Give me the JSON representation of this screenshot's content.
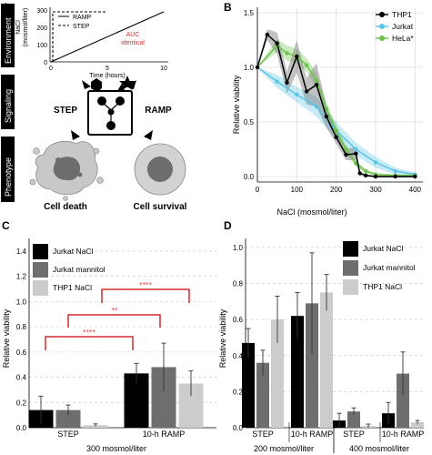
{
  "panelA": {
    "letter": "A",
    "side_labels": [
      "Environment",
      "Signaling",
      "Phenotype"
    ],
    "env_plot": {
      "ylabel": "NaCl\n(mosmol/liter)",
      "xlabel": "Time (hours)",
      "yticks": [
        "0",
        "100",
        "200",
        "300"
      ],
      "xticks": [
        "0",
        "5",
        "10"
      ],
      "legend": [
        "RAMP",
        "STEP"
      ],
      "auc_note": [
        "AUC",
        "identical"
      ]
    },
    "signaling": {
      "left": "STEP",
      "right": "RAMP"
    },
    "phenotype": {
      "left": "Cell death",
      "right": "Cell survival"
    }
  },
  "panelB": {
    "letter": "B",
    "colors": {
      "THP1": "#000000",
      "Jurkat": "#5bc4e6",
      "HeLa": "#6cc24a"
    }
  },
  "panelC": {
    "letter": "C",
    "colors": [
      "#000000",
      "#6e6e6e",
      "#cccccc"
    ],
    "significance": [
      "****",
      "**",
      "****"
    ]
  },
  "panelD": {
    "letter": "D",
    "colors": [
      "#000000",
      "#6e6e6e",
      "#cccccc"
    ]
  },
  "chart_data": [
    {
      "id": "B",
      "type": "line",
      "xlabel": "NaCl (mosmol/liter)",
      "ylabel": "Relative viability",
      "xlim": [
        0,
        420
      ],
      "ylim": [
        -0.05,
        1.55
      ],
      "xticks": [
        0,
        100,
        200,
        300,
        400
      ],
      "yticks": [
        0.0,
        0.5,
        1.0,
        1.5
      ],
      "legend_position": "top-right",
      "series": [
        {
          "name": "THP1",
          "x": [
            0,
            25,
            50,
            75,
            100,
            125,
            150,
            175,
            200,
            225,
            250,
            260,
            275,
            300,
            350,
            400
          ],
          "y": [
            1.0,
            1.3,
            1.22,
            0.86,
            1.1,
            0.78,
            0.84,
            0.55,
            0.36,
            0.2,
            0.21,
            0.03,
            0.01,
            0.0,
            0.0,
            0.0
          ],
          "err": [
            0.0,
            0.05,
            0.1,
            0.1,
            0.15,
            0.12,
            0.2,
            0.1,
            0.06,
            0.05,
            0.06,
            0.02,
            0.01,
            0.01,
            0.01,
            0.01
          ]
        },
        {
          "name": "Jurkat",
          "x": [
            0,
            50,
            100,
            150,
            200,
            250,
            300,
            350,
            400
          ],
          "y": [
            1.0,
            0.87,
            0.75,
            0.64,
            0.42,
            0.25,
            0.13,
            0.05,
            0.02
          ],
          "err": [
            0.0,
            0.06,
            0.07,
            0.09,
            0.08,
            0.06,
            0.05,
            0.03,
            0.02
          ]
        },
        {
          "name": "HeLa*",
          "x": [
            0,
            50,
            75,
            100,
            125,
            150,
            175,
            200,
            225,
            250,
            275,
            300,
            350,
            400
          ],
          "y": [
            1.0,
            1.2,
            1.13,
            1.1,
            1.02,
            0.88,
            0.62,
            0.42,
            0.25,
            0.12,
            0.05,
            0.02,
            0.01,
            0.01
          ],
          "err": [
            0.0,
            0.06,
            0.07,
            0.07,
            0.06,
            0.07,
            0.06,
            0.05,
            0.04,
            0.03,
            0.02,
            0.01,
            0.01,
            0.01
          ]
        }
      ]
    },
    {
      "id": "C",
      "type": "bar",
      "ylabel": "Relative viability",
      "xlabel": "300 mosmol/liter",
      "ylim": [
        0,
        1.5
      ],
      "yticks": [
        0.0,
        0.2,
        0.4,
        0.6,
        0.8,
        1.0,
        1.2,
        1.4
      ],
      "legend_position": "top-left",
      "groups": [
        "STEP",
        "10-h RAMP"
      ],
      "series": [
        {
          "name": "Jurkat NaCl",
          "values": [
            0.14,
            0.43
          ],
          "err": [
            0.11,
            0.08
          ]
        },
        {
          "name": "Jurkat mannitol",
          "values": [
            0.14,
            0.48
          ],
          "err": [
            0.04,
            0.19
          ]
        },
        {
          "name": "THP1 NaCl",
          "values": [
            0.02,
            0.35
          ],
          "err": [
            0.01,
            0.1
          ]
        }
      ]
    },
    {
      "id": "D",
      "type": "bar",
      "ylabel": "Relative viability",
      "ylim": [
        0,
        1.05
      ],
      "yticks": [
        0.0,
        0.2,
        0.4,
        0.6,
        0.8,
        1.0
      ],
      "legend_position": "top-right",
      "sections": [
        "200 mosmol/liter",
        "400 mosmol/liter"
      ],
      "groups": [
        "STEP",
        "10-h RAMP",
        "STEP",
        "10-h RAMP"
      ],
      "series": [
        {
          "name": "Jurkat NaCl",
          "values": [
            0.47,
            0.62,
            0.04,
            0.08
          ],
          "err": [
            0.08,
            0.13,
            0.04,
            0.06
          ]
        },
        {
          "name": "Jurkat mannitol",
          "values": [
            0.36,
            0.69,
            0.09,
            0.3
          ],
          "err": [
            0.07,
            0.28,
            0.02,
            0.12
          ]
        },
        {
          "name": "THP1 NaCl",
          "values": [
            0.6,
            0.75,
            0.01,
            0.03
          ],
          "err": [
            0.13,
            0.1,
            0.01,
            0.01
          ]
        }
      ]
    }
  ]
}
